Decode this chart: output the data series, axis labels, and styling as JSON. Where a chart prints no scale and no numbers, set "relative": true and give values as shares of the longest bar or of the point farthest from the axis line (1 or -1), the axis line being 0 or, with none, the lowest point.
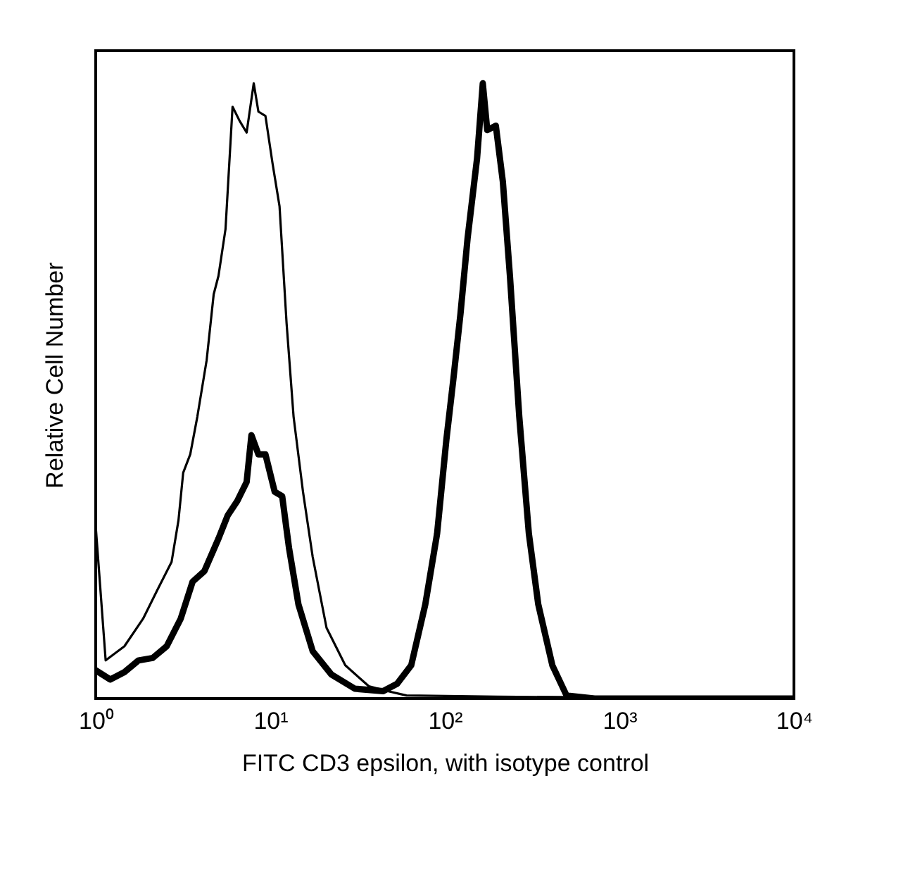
{
  "chart_data": {
    "type": "line",
    "xlabel": "FITC CD3 epsilon, with isotype control",
    "ylabel": "Relative Cell Number",
    "relative": true,
    "log": "x",
    "grid": false,
    "marker": "none",
    "line_style": "solid",
    "xlim": [
      1,
      10000
    ],
    "xticks": [
      {
        "value": 1,
        "label": "10⁰"
      },
      {
        "value": 10,
        "label": "10¹"
      },
      {
        "value": 100,
        "label": "10²"
      },
      {
        "value": 1000,
        "label": "10³"
      },
      {
        "value": 10000,
        "label": "10⁴"
      }
    ],
    "series": [
      {
        "color": "#000000",
        "x": [
          1.0,
          1.14,
          1.46,
          1.87,
          2.25,
          2.72,
          2.98,
          3.17,
          3.48,
          3.82,
          4.32,
          4.74,
          5.05,
          5.54,
          6.08,
          6.67,
          7.32,
          8.04,
          8.55,
          9.38,
          10.3,
          11.3,
          12.4,
          13.6,
          15.4,
          17.5,
          21.0,
          26.9,
          36.7,
          47.1,
          60.3,
          200,
          10000
        ],
        "values": [
          0.28,
          0.062,
          0.085,
          0.13,
          0.176,
          0.222,
          0.29,
          0.367,
          0.397,
          0.458,
          0.55,
          0.657,
          0.687,
          0.763,
          0.962,
          0.939,
          0.92,
          1,
          0.954,
          0.947,
          0.87,
          0.8,
          0.61,
          0.458,
          0.336,
          0.23,
          0.115,
          0.054,
          0.02,
          0.012,
          0.005,
          0.003,
          0
        ]
      },
      {
        "color": "#000000",
        "x": [
          1.0,
          1.21,
          1.46,
          1.76,
          2.12,
          2.55,
          3.07,
          3.59,
          4.19,
          5.05,
          5.71,
          6.47,
          7.32,
          7.8,
          8.55,
          9.38,
          10.6,
          11.7,
          12.8,
          14.5,
          17.5,
          22.4,
          30.5,
          44.3,
          53.3,
          64.2,
          77.3,
          90.3,
          102,
          112,
          123,
          135,
          153,
          165,
          175,
          196,
          215,
          236,
          267,
          303,
          343,
          413,
          498,
          721,
          10000
        ],
        "values": [
          0.046,
          0.031,
          0.043,
          0.062,
          0.066,
          0.085,
          0.13,
          0.19,
          0.207,
          0.26,
          0.298,
          0.321,
          0.352,
          0.428,
          0.397,
          0.397,
          0.336,
          0.329,
          0.245,
          0.153,
          0.077,
          0.039,
          0.016,
          0.012,
          0.024,
          0.054,
          0.153,
          0.268,
          0.42,
          0.52,
          0.626,
          0.748,
          0.878,
          1,
          0.924,
          0.931,
          0.84,
          0.687,
          0.458,
          0.268,
          0.153,
          0.054,
          0.005,
          0,
          0
        ]
      }
    ]
  }
}
